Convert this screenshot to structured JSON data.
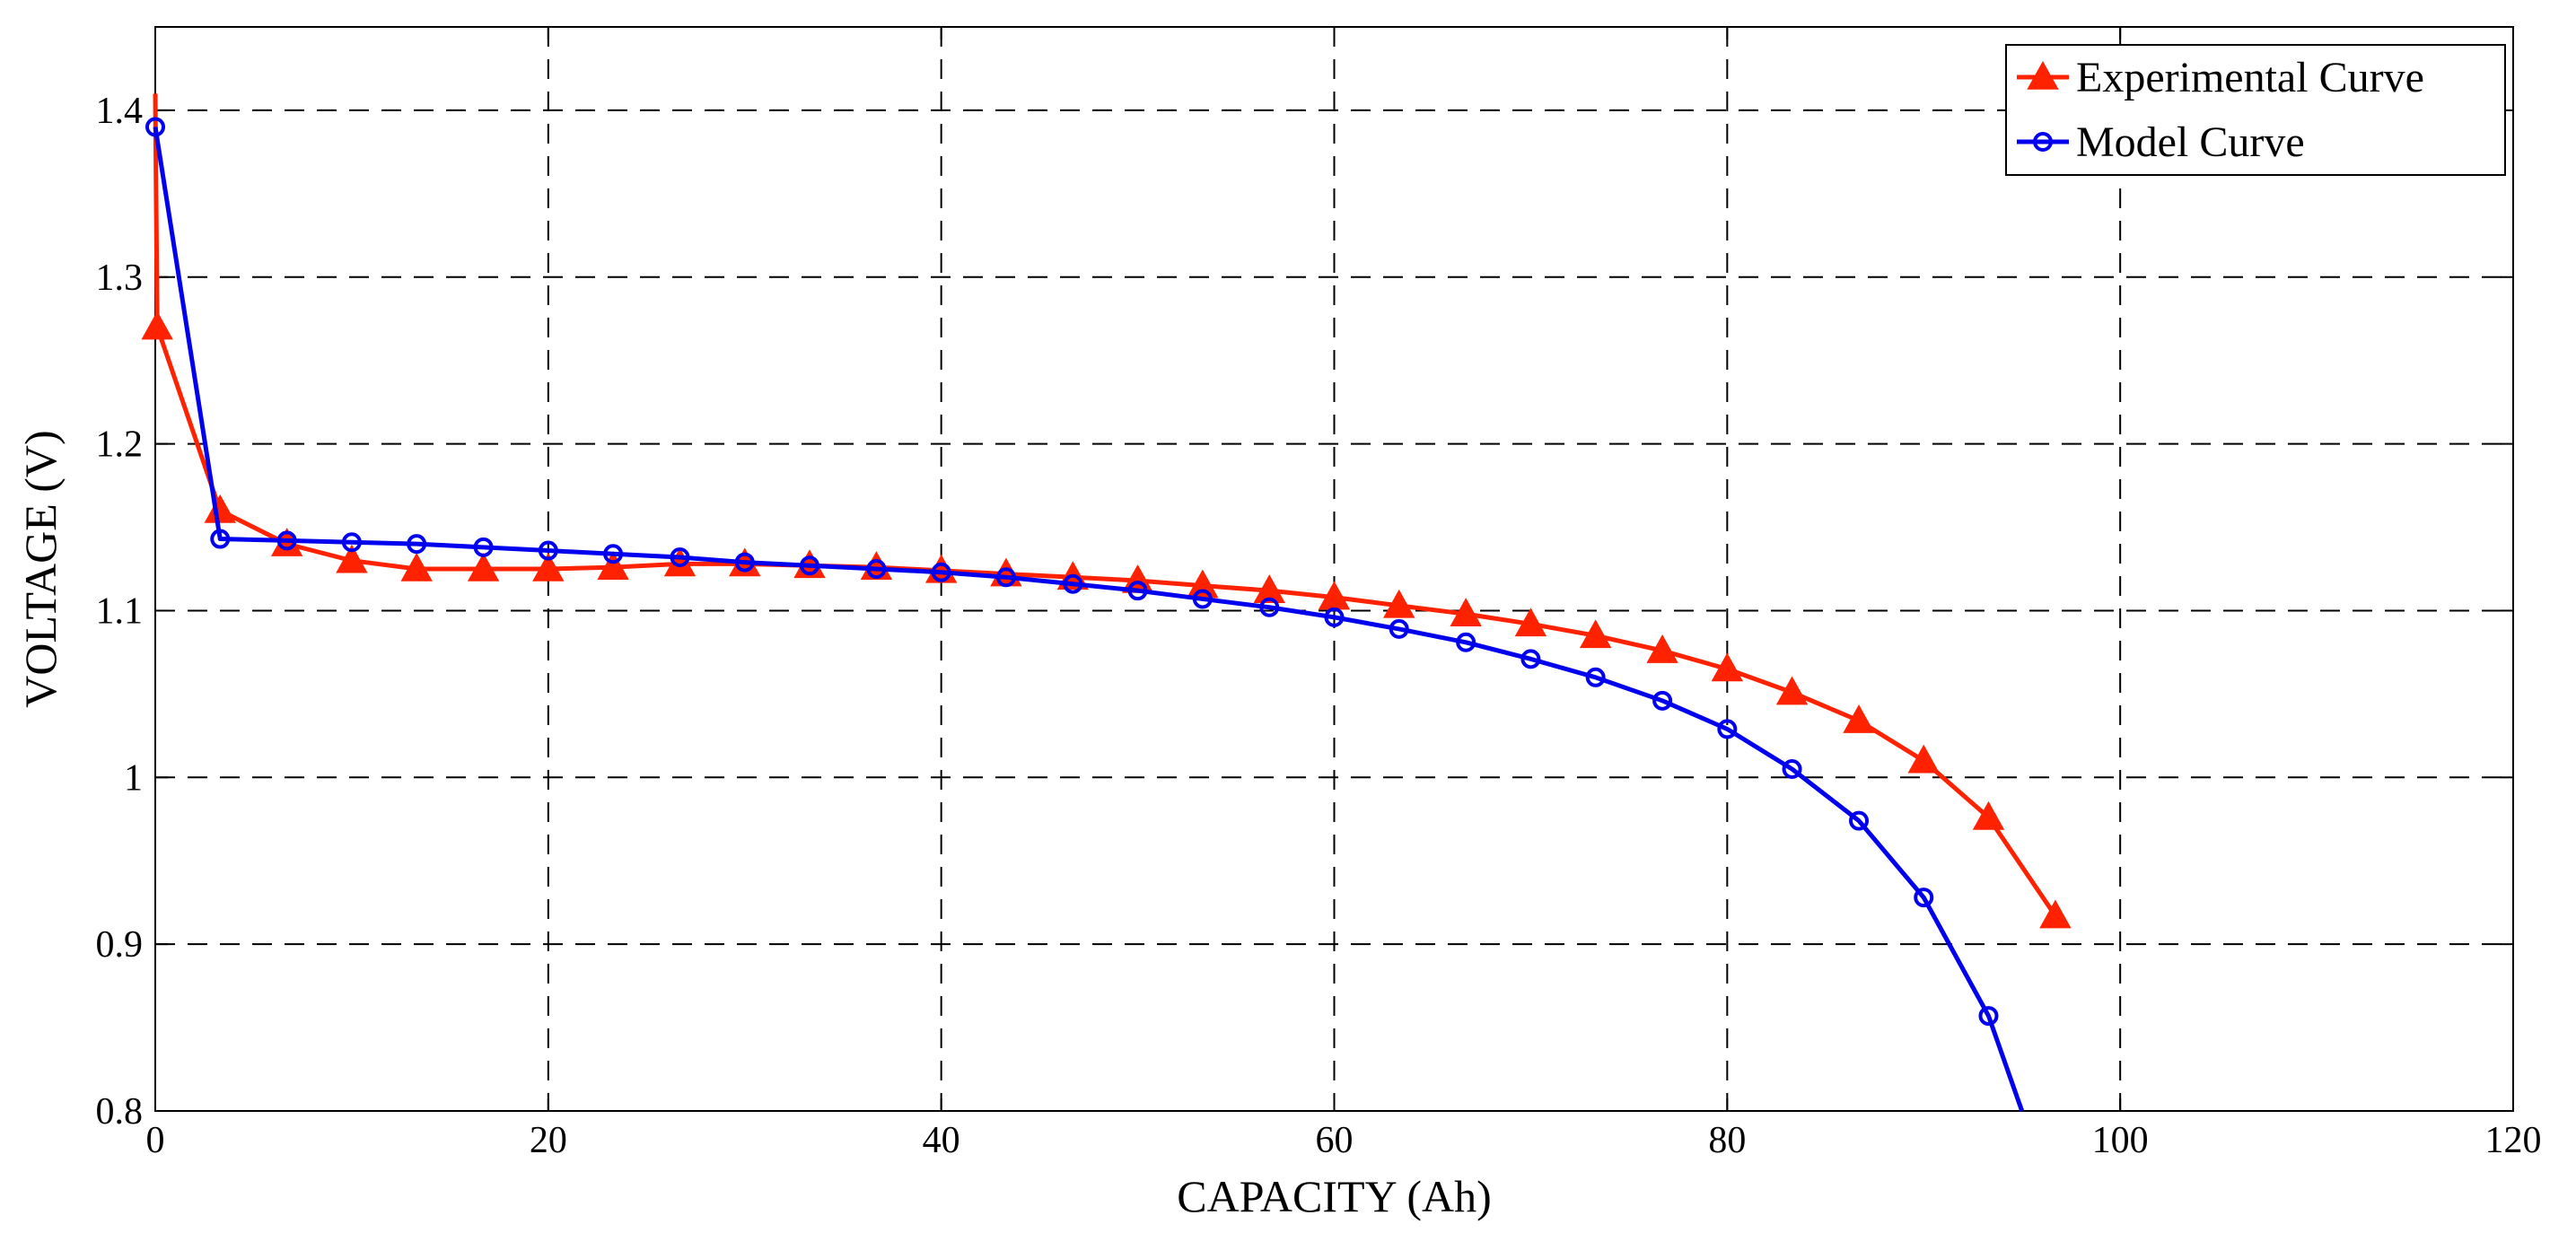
{
  "chart_data": {
    "type": "line",
    "xlabel": "CAPACITY (Ah)",
    "ylabel": "VOLTAGE (V)",
    "xlim": [
      0,
      120
    ],
    "ylim": [
      0.8,
      1.45
    ],
    "xticks": [
      0,
      20,
      40,
      60,
      80,
      100,
      120
    ],
    "xtick_labels": [
      "0",
      "20",
      "40",
      "60",
      "80",
      "100",
      "120"
    ],
    "yticks": [
      0.8,
      0.9,
      1.0,
      1.1,
      1.2,
      1.3,
      1.4
    ],
    "ytick_labels": [
      "0.8",
      "0.9",
      "1",
      "1.1",
      "1.2",
      "1.3",
      "1.4"
    ],
    "grid": true,
    "legend_position": "top-right",
    "series": [
      {
        "name": "Experimental Curve",
        "color": "#ff2200",
        "marker": "triangle",
        "x": [
          0,
          0.1,
          3.3,
          6.7,
          10,
          13.3,
          16.7,
          20,
          23.3,
          26.7,
          30,
          33.3,
          36.7,
          40,
          43.3,
          46.7,
          50,
          53.3,
          56.7,
          60,
          63.3,
          66.7,
          70,
          73.3,
          76.7,
          80,
          83.3,
          86.7,
          90,
          93.3,
          96.7
        ],
        "y": [
          1.41,
          1.27,
          1.16,
          1.14,
          1.13,
          1.125,
          1.125,
          1.125,
          1.126,
          1.128,
          1.128,
          1.127,
          1.126,
          1.124,
          1.122,
          1.12,
          1.118,
          1.115,
          1.112,
          1.108,
          1.103,
          1.098,
          1.092,
          1.085,
          1.076,
          1.065,
          1.051,
          1.034,
          1.01,
          0.976,
          0.917
        ],
        "markers": [
          false,
          true,
          true,
          true,
          true,
          true,
          true,
          true,
          true,
          true,
          true,
          true,
          true,
          true,
          true,
          true,
          true,
          true,
          true,
          true,
          true,
          true,
          true,
          true,
          true,
          true,
          true,
          true,
          true,
          true,
          true
        ]
      },
      {
        "name": "Model Curve",
        "color": "#0000ee",
        "marker": "circle",
        "x": [
          0,
          3.3,
          6.7,
          10,
          13.3,
          16.7,
          20,
          23.3,
          26.7,
          30,
          33.3,
          36.7,
          40,
          43.3,
          46.7,
          50,
          53.3,
          56.7,
          60,
          63.3,
          66.7,
          70,
          73.3,
          76.7,
          80,
          83.3,
          86.7,
          90,
          93.3,
          95
        ],
        "y": [
          1.39,
          1.143,
          1.142,
          1.141,
          1.14,
          1.138,
          1.136,
          1.134,
          1.132,
          1.129,
          1.127,
          1.125,
          1.123,
          1.12,
          1.116,
          1.112,
          1.107,
          1.102,
          1.096,
          1.089,
          1.081,
          1.071,
          1.06,
          1.046,
          1.029,
          1.005,
          0.974,
          0.928,
          0.857,
          0.8
        ],
        "markers": [
          true,
          true,
          true,
          true,
          true,
          true,
          true,
          true,
          true,
          true,
          true,
          true,
          true,
          true,
          true,
          true,
          true,
          true,
          true,
          true,
          true,
          true,
          true,
          true,
          true,
          true,
          true,
          true,
          true,
          false
        ]
      }
    ]
  }
}
